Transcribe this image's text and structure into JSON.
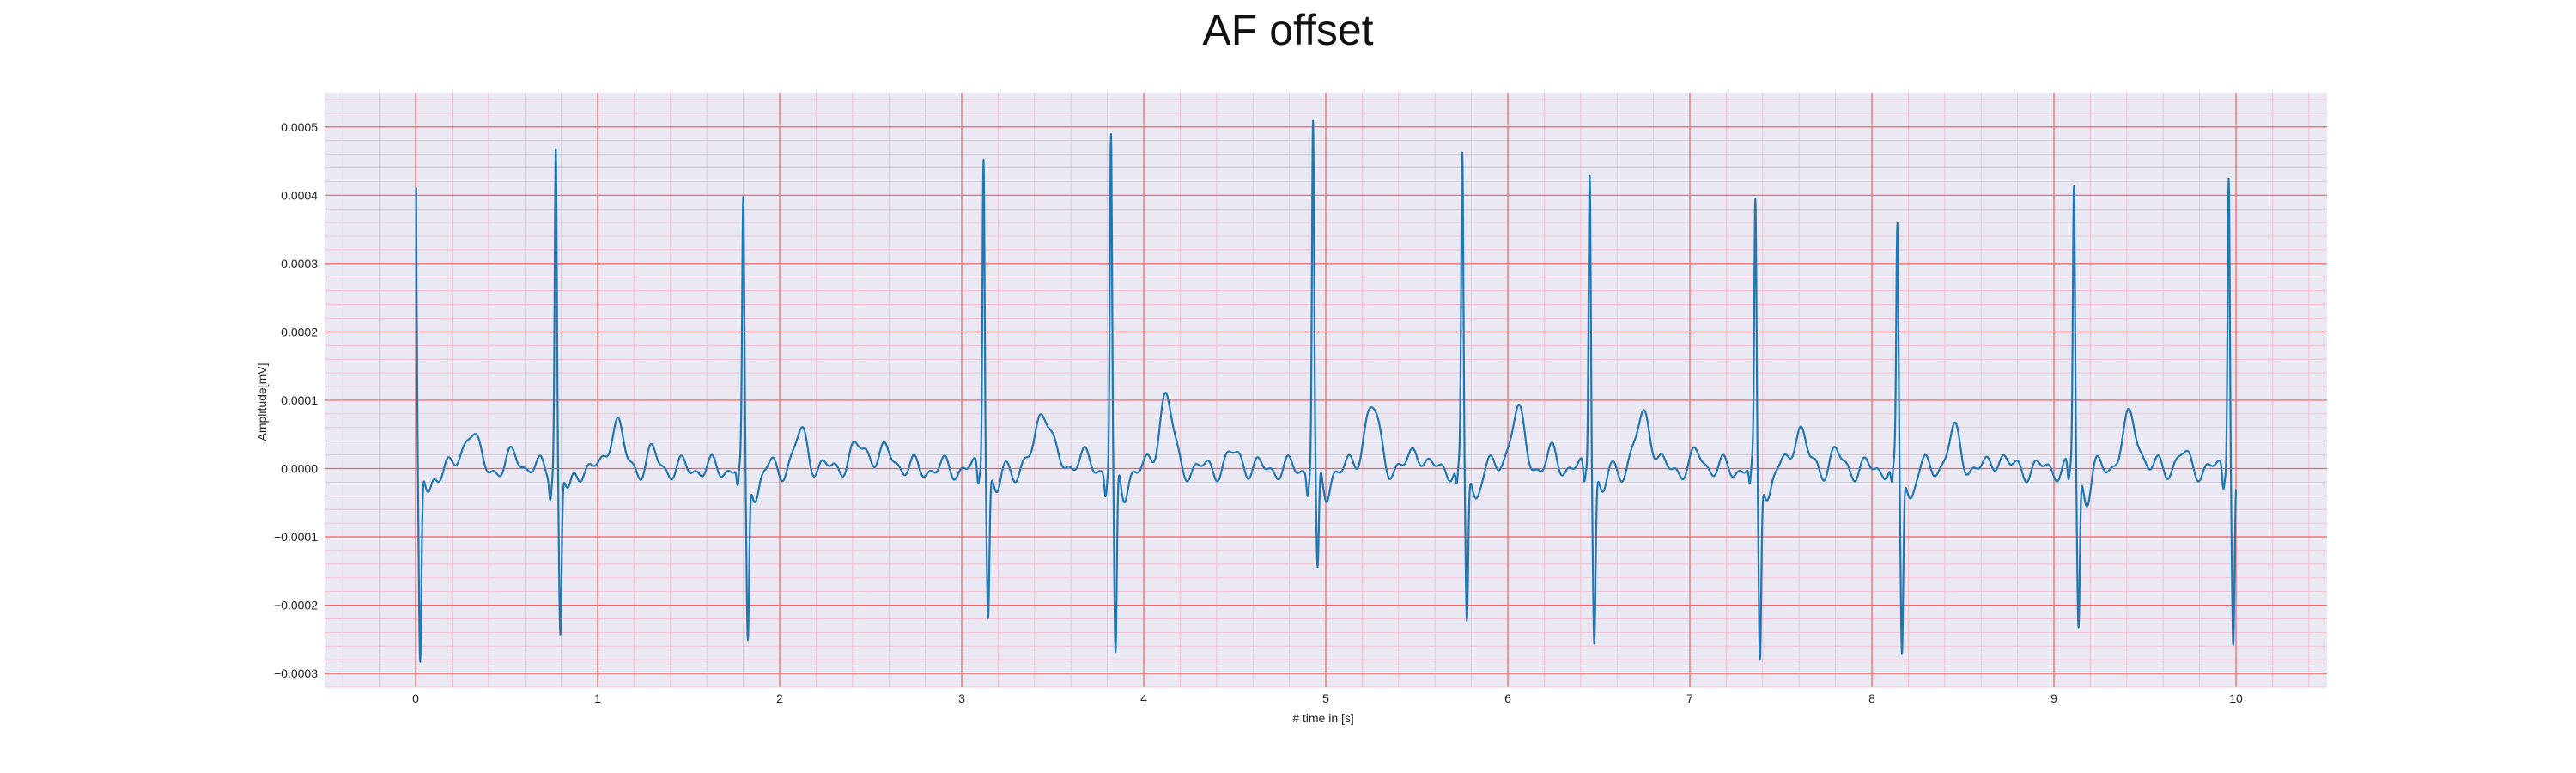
{
  "chart_data": {
    "type": "line",
    "title": "AF offset",
    "xlabel": "# time in [s]",
    "ylabel": "Amplitude[mV]",
    "xlim": [
      -0.5,
      10.5
    ],
    "ylim": [
      -0.00032,
      0.00055
    ],
    "x_ticks": [
      0,
      1,
      2,
      3,
      4,
      5,
      6,
      7,
      8,
      9,
      10
    ],
    "y_ticks": [
      -0.0003,
      -0.0002,
      -0.0001,
      0.0,
      0.0001,
      0.0002,
      0.0003,
      0.0004,
      0.0005
    ],
    "x_tick_labels": [
      "0",
      "1",
      "2",
      "3",
      "4",
      "5",
      "6",
      "7",
      "8",
      "9",
      "10"
    ],
    "y_tick_labels": [
      "−0.0003",
      "−0.0002",
      "−0.0001",
      "0.0000",
      "0.0001",
      "0.0002",
      "0.0003",
      "0.0004",
      "0.0005"
    ],
    "grid": true,
    "colors": {
      "line": "#1f77b4",
      "background": "#eae8f2",
      "major_grid": "#f06060",
      "minor_grid": "#f5b8c8"
    },
    "series": [
      {
        "beats": [
          {
            "t": 0.0,
            "r": 0.00041,
            "s": -0.00029,
            "p": 0.0
          },
          {
            "t": 0.77,
            "r": 0.00047,
            "s": -0.00024,
            "p": 0.0
          },
          {
            "t": 1.8,
            "r": 0.00038,
            "s": -0.000245,
            "p": 0.0
          },
          {
            "t": 3.12,
            "r": 0.00047,
            "s": -0.000205,
            "p": 0.0
          },
          {
            "t": 3.82,
            "r": 0.00049,
            "s": -0.000285,
            "p": 0.0
          },
          {
            "t": 4.93,
            "r": 0.00051,
            "s": -0.00016,
            "p": 0.0
          },
          {
            "t": 5.75,
            "r": 0.00045,
            "s": -0.00022,
            "p": 0.0
          },
          {
            "t": 6.45,
            "r": 0.000445,
            "s": -0.00024,
            "p": 0.0
          },
          {
            "t": 7.36,
            "r": 0.00038,
            "s": -0.00027,
            "p": 0.0
          },
          {
            "t": 8.14,
            "r": 0.000345,
            "s": -0.000265,
            "p": 0.0
          },
          {
            "t": 9.11,
            "r": 0.000415,
            "s": -0.00023,
            "p": 0.0
          },
          {
            "t": 9.96,
            "r": 0.000445,
            "s": -0.00025,
            "p": 0.0
          }
        ],
        "baseline_waves": [
          {
            "t": 0.3,
            "a": 6e-05,
            "w": 0.035
          },
          {
            "t": 0.55,
            "a": 2e-05,
            "w": 0.03
          },
          {
            "t": 1.1,
            "a": 7e-05,
            "w": 0.035
          },
          {
            "t": 1.3,
            "a": 2e-05,
            "w": 0.03
          },
          {
            "t": 2.12,
            "a": 5e-05,
            "w": 0.035
          },
          {
            "t": 2.45,
            "a": 3e-05,
            "w": 0.06
          },
          {
            "t": 2.6,
            "a": 2e-05,
            "w": 0.04
          },
          {
            "t": 3.45,
            "a": 9e-05,
            "w": 0.04
          },
          {
            "t": 3.65,
            "a": 2e-05,
            "w": 0.03
          },
          {
            "t": 4.12,
            "a": 0.00011,
            "w": 0.035
          },
          {
            "t": 4.5,
            "a": 2e-05,
            "w": 0.04
          },
          {
            "t": 5.25,
            "a": 9e-05,
            "w": 0.04
          },
          {
            "t": 5.5,
            "a": 3e-05,
            "w": 0.03
          },
          {
            "t": 6.05,
            "a": 8e-05,
            "w": 0.04
          },
          {
            "t": 6.25,
            "a": 2e-05,
            "w": 0.03
          },
          {
            "t": 6.75,
            "a": 8e-05,
            "w": 0.04
          },
          {
            "t": 7.05,
            "a": 2e-05,
            "w": 0.03
          },
          {
            "t": 7.6,
            "a": 6e-05,
            "w": 0.035
          },
          {
            "t": 7.8,
            "a": 2e-05,
            "w": 0.03
          },
          {
            "t": 8.45,
            "a": 5e-05,
            "w": 0.035
          },
          {
            "t": 8.7,
            "a": 2e-05,
            "w": 0.03
          },
          {
            "t": 9.42,
            "a": 7e-05,
            "w": 0.045
          },
          {
            "t": 9.7,
            "a": 2e-05,
            "w": 0.03
          }
        ]
      }
    ]
  }
}
